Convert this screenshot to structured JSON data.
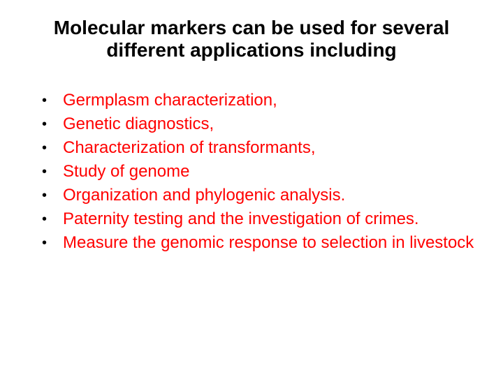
{
  "title": {
    "text": "Molecular markers can be used for several different applications including",
    "fontsize": 28,
    "color": "#000000",
    "weight": "bold"
  },
  "bullet": {
    "glyph": "•",
    "color": "#000000"
  },
  "items": [
    "Germplasm characterization,",
    "Genetic diagnostics,",
    "Characterization of transformants,",
    "Study of genome",
    "Organization and phylogenic analysis.",
    "Paternity testing and the investigation of crimes.",
    "Measure the genomic response to selection in livestock"
  ],
  "body_style": {
    "fontsize": 24,
    "color": "#ff0000",
    "weight": "normal"
  },
  "background_color": "#ffffff"
}
